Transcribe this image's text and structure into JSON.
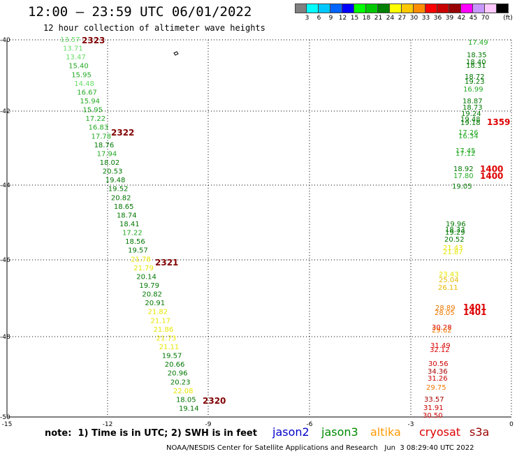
{
  "header": {
    "title": "12:00 — 23:59 UTC 06/01/2022",
    "subtitle": "12 hour collection of altimeter wave heights"
  },
  "legend": {
    "unit_label": "(ft)",
    "items": [
      {
        "label": "",
        "color": "#808080"
      },
      {
        "label": "3",
        "color": "#00ffff"
      },
      {
        "label": "6",
        "color": "#00c8ff"
      },
      {
        "label": "9",
        "color": "#0064ff"
      },
      {
        "label": "12",
        "color": "#0000ff"
      },
      {
        "label": "15",
        "color": "#00ff00"
      },
      {
        "label": "18",
        "color": "#00c800"
      },
      {
        "label": "21",
        "color": "#008000"
      },
      {
        "label": "24",
        "color": "#ffff00"
      },
      {
        "label": "27",
        "color": "#ffc800"
      },
      {
        "label": "30",
        "color": "#ff8c00"
      },
      {
        "label": "33",
        "color": "#ff0000"
      },
      {
        "label": "36",
        "color": "#c80000"
      },
      {
        "label": "39",
        "color": "#960000"
      },
      {
        "label": "42",
        "color": "#ff00ff"
      },
      {
        "label": "45",
        "color": "#c896ff"
      },
      {
        "label": "70",
        "color": "#ffc8ff"
      },
      {
        "label": "",
        "color": "#000000"
      }
    ]
  },
  "map": {
    "lat_labels": [
      "-40",
      "-42",
      "-44",
      "-46",
      "-48",
      "-50"
    ],
    "lon_labels": [
      "-15",
      "-12",
      "-9",
      "-6",
      "-3",
      "0"
    ],
    "track_west": {
      "passes": [
        {
          "label": "2323",
          "color": "#800000"
        },
        {
          "label": "2322",
          "color": "#800000"
        },
        {
          "label": "2321",
          "color": "#800000"
        },
        {
          "label": "2320",
          "color": "#800000"
        }
      ],
      "values": [
        {
          "v": "13.57",
          "c": "#66dd66"
        },
        {
          "v": "13.71",
          "c": "#66dd66"
        },
        {
          "v": "13.47",
          "c": "#66dd66"
        },
        {
          "v": "15.40",
          "c": "#22aa22"
        },
        {
          "v": "15.95",
          "c": "#22aa22"
        },
        {
          "v": "14.48",
          "c": "#66dd66"
        },
        {
          "v": "16.67",
          "c": "#22aa22"
        },
        {
          "v": "15.94",
          "c": "#22aa22"
        },
        {
          "v": "15.95",
          "c": "#22aa22"
        },
        {
          "v": "17.22",
          "c": "#22aa22"
        },
        {
          "v": "16.83",
          "c": "#22aa22"
        },
        {
          "v": "17.78",
          "c": "#22aa22"
        },
        {
          "v": "18.76",
          "c": "#007700"
        },
        {
          "v": "17.94",
          "c": "#22aa22"
        },
        {
          "v": "18.02",
          "c": "#007700"
        },
        {
          "v": "20.53",
          "c": "#007700"
        },
        {
          "v": "19.48",
          "c": "#007700"
        },
        {
          "v": "19.52",
          "c": "#007700"
        },
        {
          "v": "20.82",
          "c": "#007700"
        },
        {
          "v": "18.65",
          "c": "#007700"
        },
        {
          "v": "18.74",
          "c": "#007700"
        },
        {
          "v": "18.41",
          "c": "#007700"
        },
        {
          "v": "17.22",
          "c": "#22aa22"
        },
        {
          "v": "18.56",
          "c": "#007700"
        },
        {
          "v": "19.57",
          "c": "#007700"
        },
        {
          "v": "21.78",
          "c": "#e6e600"
        },
        {
          "v": "21.79",
          "c": "#e6e600"
        },
        {
          "v": "20.14",
          "c": "#007700"
        },
        {
          "v": "19.79",
          "c": "#007700"
        },
        {
          "v": "20.82",
          "c": "#007700"
        },
        {
          "v": "20.91",
          "c": "#007700"
        },
        {
          "v": "21.82",
          "c": "#e6e600"
        },
        {
          "v": "21.17",
          "c": "#e6e600"
        },
        {
          "v": "21.86",
          "c": "#e6e600"
        },
        {
          "v": "21.73",
          "c": "#e6e600"
        },
        {
          "v": "21.11",
          "c": "#e6e600"
        },
        {
          "v": "19.57",
          "c": "#007700"
        },
        {
          "v": "20.66",
          "c": "#007700"
        },
        {
          "v": "20.96",
          "c": "#007700"
        },
        {
          "v": "20.23",
          "c": "#007700"
        },
        {
          "v": "22.08",
          "c": "#e6e600"
        },
        {
          "v": "18.05",
          "c": "#007700"
        },
        {
          "v": "19.14",
          "c": "#007700"
        }
      ]
    },
    "track_east": {
      "passes": [
        {
          "label": "1359",
          "color": "#dd0000"
        },
        {
          "label": "1400",
          "color": "#dd0000"
        },
        {
          "label": "1400",
          "color": "#dd0000"
        },
        {
          "label": "1401",
          "color": "#dd0000"
        },
        {
          "label": "1401",
          "color": "#dd0000"
        }
      ],
      "values": [
        {
          "v": "17.49",
          "c": "#22aa22"
        },
        {
          "v": "18.35",
          "c": "#007700"
        },
        {
          "v": "18.40",
          "c": "#007700"
        },
        {
          "v": "18.31",
          "c": "#007700"
        },
        {
          "v": "18.72",
          "c": "#007700"
        },
        {
          "v": "19.23",
          "c": "#007700"
        },
        {
          "v": "16.99",
          "c": "#22aa22"
        },
        {
          "v": "18.87",
          "c": "#007700"
        },
        {
          "v": "18.73",
          "c": "#007700"
        },
        {
          "v": "19.24",
          "c": "#007700"
        },
        {
          "v": "19.48",
          "c": "#007700"
        },
        {
          "v": "19.18",
          "c": "#007700"
        },
        {
          "v": "17.26",
          "c": "#22aa22"
        },
        {
          "v": "16.34",
          "c": "#22aa22"
        },
        {
          "v": "17.45",
          "c": "#22aa22"
        },
        {
          "v": "17.12",
          "c": "#22aa22"
        },
        {
          "v": "18.92",
          "c": "#007700"
        },
        {
          "v": "17.80",
          "c": "#22aa22"
        },
        {
          "v": "19.05",
          "c": "#007700"
        },
        {
          "v": "19.96",
          "c": "#007700"
        },
        {
          "v": "18.33",
          "c": "#007700"
        },
        {
          "v": "19.29",
          "c": "#007700"
        },
        {
          "v": "20.52",
          "c": "#007700"
        },
        {
          "v": "21.43",
          "c": "#e6e600"
        },
        {
          "v": "21.87",
          "c": "#e6e600"
        },
        {
          "v": "23.43",
          "c": "#e6e600"
        },
        {
          "v": "25.04",
          "c": "#e6b800"
        },
        {
          "v": "26.11",
          "c": "#e6b800"
        },
        {
          "v": "28.89",
          "c": "#ee7700"
        },
        {
          "v": "28.05",
          "c": "#ee7700"
        },
        {
          "v": "30.28",
          "c": "#dd0000"
        },
        {
          "v": "29.62",
          "c": "#ee7700"
        },
        {
          "v": "31.49",
          "c": "#dd0000"
        },
        {
          "v": "32.12",
          "c": "#dd0000"
        },
        {
          "v": "30.56",
          "c": "#cc0000"
        },
        {
          "v": "34.36",
          "c": "#aa0000"
        },
        {
          "v": "31.26",
          "c": "#cc0000"
        },
        {
          "v": "29.75",
          "c": "#ee7700"
        },
        {
          "v": "33.57",
          "c": "#aa0000"
        },
        {
          "v": "31.91",
          "c": "#cc0000"
        },
        {
          "v": "30.50",
          "c": "#cc0000"
        }
      ]
    }
  },
  "footer": {
    "note": "note:  1) Time is in UTC; 2) SWH is in feet",
    "satellites": [
      {
        "label": "jason2",
        "color": "#0000cc"
      },
      {
        "label": "jason3",
        "color": "#008800"
      },
      {
        "label": "altika",
        "color": "#ff9900"
      },
      {
        "label": "cryosat",
        "color": "#dd0000"
      },
      {
        "label": "s3a",
        "color": "#990000"
      }
    ],
    "credit": "NOAA/NESDIS Center for Satellite Applications and Research   Jun  3 08:29:40 UTC 2022"
  }
}
